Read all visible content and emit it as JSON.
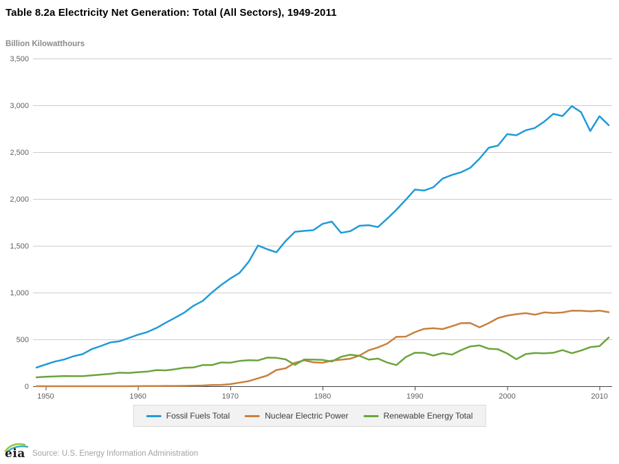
{
  "header": {
    "title": "Table 8.2a Electricity Net Generation: Total (All Sectors), 1949-2011"
  },
  "chart_data": {
    "type": "line",
    "title": "Table 8.2a Electricity Net Generation: Total (All Sectors), 1949-2011",
    "ylabel": "Billion Kilowatthours",
    "unit_label": "Billion Kilowatthours",
    "ylim": [
      0,
      3500
    ],
    "y_ticks": [
      0,
      500,
      1000,
      1500,
      2000,
      2500,
      3000,
      3500
    ],
    "y_tick_labels": [
      "0",
      "500",
      "1,000",
      "1,500",
      "2,000",
      "2,500",
      "3,000",
      "3,500"
    ],
    "x_ticks": [
      1950,
      1960,
      1970,
      1980,
      1990,
      2000,
      2010
    ],
    "x_range": [
      1949,
      2011
    ],
    "grid": "horizontal",
    "legend_position": "bottom",
    "x": [
      1949,
      1950,
      1951,
      1952,
      1953,
      1954,
      1955,
      1956,
      1957,
      1958,
      1959,
      1960,
      1961,
      1962,
      1963,
      1964,
      1965,
      1966,
      1967,
      1968,
      1969,
      1970,
      1971,
      1972,
      1973,
      1974,
      1975,
      1976,
      1977,
      1978,
      1979,
      1980,
      1981,
      1982,
      1983,
      1984,
      1985,
      1986,
      1987,
      1988,
      1989,
      1990,
      1991,
      1992,
      1993,
      1994,
      1995,
      1996,
      1997,
      1998,
      1999,
      2000,
      2001,
      2002,
      2003,
      2004,
      2005,
      2006,
      2007,
      2008,
      2009,
      2010,
      2011
    ],
    "series": [
      {
        "name": "Fossil Fuels Total",
        "color": "#1f9ad7",
        "values": [
          199,
          232,
          263,
          285,
          320,
          343,
          396,
          430,
          468,
          480,
          515,
          550,
          578,
          622,
          678,
          730,
          785,
          858,
          910,
          1000,
          1080,
          1150,
          1210,
          1330,
          1503,
          1463,
          1431,
          1551,
          1649,
          1659,
          1666,
          1734,
          1758,
          1638,
          1656,
          1713,
          1720,
          1700,
          1790,
          1885,
          1990,
          2100,
          2090,
          2125,
          2218,
          2256,
          2285,
          2332,
          2430,
          2547,
          2570,
          2692,
          2680,
          2733,
          2758,
          2825,
          2909,
          2885,
          2992,
          2927,
          2726,
          2884,
          2788
        ]
      },
      {
        "name": "Nuclear Electric Power",
        "color": "#c8803d",
        "values": [
          0,
          0,
          0,
          0,
          0,
          0,
          0,
          0,
          0.1,
          0.2,
          0.2,
          0.5,
          1.7,
          2.3,
          3.2,
          3.3,
          3.7,
          5.5,
          7.7,
          12.5,
          13.9,
          21.8,
          38.1,
          54.1,
          83.5,
          114,
          172.5,
          191.1,
          250.9,
          276.4,
          255.2,
          251.1,
          272.7,
          282.8,
          293.7,
          327.6,
          383.7,
          414,
          455.3,
          527,
          529.4,
          576.9,
          612.6,
          618.8,
          610.3,
          640.4,
          673.4,
          674.7,
          628.6,
          673.7,
          728.3,
          753.9,
          768.8,
          780.1,
          763.7,
          788.5,
          782,
          787.2,
          806.4,
          806.2,
          798.9,
          807,
          790.2
        ]
      },
      {
        "name": "Renewable Energy Total",
        "color": "#6aa43c",
        "values": [
          95,
          101,
          105,
          108,
          107,
          107,
          116,
          124,
          132,
          144,
          141,
          150,
          156,
          172,
          169,
          181,
          197,
          200,
          226,
          226,
          254,
          251,
          270,
          277,
          275,
          305,
          303,
          287,
          227,
          285,
          284,
          281,
          264,
          314,
          337,
          324,
          284,
          295,
          253,
          226,
          310,
          357,
          356,
          327,
          354,
          337,
          385,
          425,
          435,
          400,
          395,
          350,
          288,
          343,
          355,
          351,
          357,
          385,
          352,
          381,
          417,
          428,
          520
        ]
      }
    ]
  },
  "colors": {
    "grid": "#cccccc",
    "axis": "#404040",
    "tick_label": "#5f5f5f",
    "title_text": "#000000",
    "unit_label_text": "#8a8a8a",
    "legend_bg": "#f2f2f2",
    "legend_border": "#d9d9d9",
    "logo_green": "#9bc53d",
    "logo_blue": "#2aa8c4"
  },
  "footer": {
    "logo_text": "eia",
    "source": "Source: U.S. Energy Information Administration"
  }
}
